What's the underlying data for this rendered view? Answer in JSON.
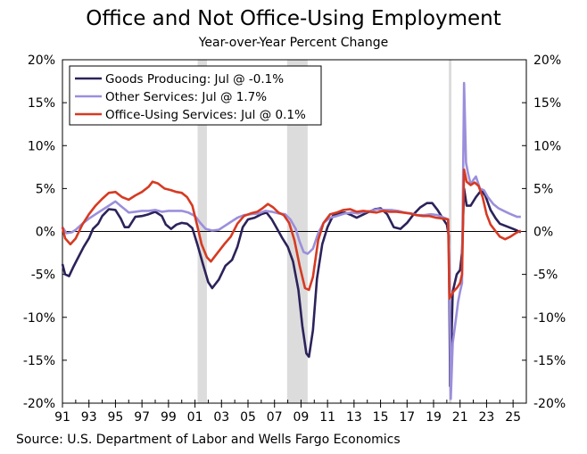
{
  "chart_data": {
    "type": "line",
    "title": "Office and Not Office-Using Employment",
    "subtitle": "Year-over-Year Percent Change",
    "source": "Source: U.S. Department of Labor and Wells Fargo Economics",
    "xlabel": "",
    "ylabel": "",
    "xlim": [
      1991.0,
      2026.0
    ],
    "ylim": [
      -20,
      20
    ],
    "yticks": [
      20,
      15,
      10,
      5,
      0,
      -5,
      -10,
      -15,
      -20
    ],
    "ytick_labels": [
      "20%",
      "15%",
      "10%",
      "5%",
      "0%",
      "-5%",
      "-10%",
      "-15%",
      "-20%"
    ],
    "xtick_labels": [
      "91",
      "93",
      "95",
      "97",
      "99",
      "01",
      "03",
      "05",
      "07",
      "09",
      "11",
      "13",
      "15",
      "17",
      "19",
      "21",
      "23",
      "25"
    ],
    "xticks": [
      1991,
      1993,
      1995,
      1997,
      1999,
      2001,
      2003,
      2005,
      2007,
      2009,
      2011,
      2013,
      2015,
      2017,
      2019,
      2021,
      2023,
      2025
    ],
    "recessions": [
      [
        2001.2,
        2001.9
      ],
      [
        2007.95,
        2009.5
      ],
      [
        2020.15,
        2020.35
      ]
    ],
    "legend_position": "top-left",
    "series": [
      {
        "name": "Goods Producing: Jul @ -0.1%",
        "color": "#2b235a",
        "points": [
          [
            1991.0,
            -3.8
          ],
          [
            1991.2,
            -5.0
          ],
          [
            1991.5,
            -5.2
          ],
          [
            1991.8,
            -4.2
          ],
          [
            1992.2,
            -3.0
          ],
          [
            1992.6,
            -1.8
          ],
          [
            1993.0,
            -0.8
          ],
          [
            1993.3,
            0.3
          ],
          [
            1993.7,
            0.9
          ],
          [
            1994.0,
            1.8
          ],
          [
            1994.5,
            2.6
          ],
          [
            1995.0,
            2.5
          ],
          [
            1995.4,
            1.5
          ],
          [
            1995.7,
            0.5
          ],
          [
            1996.0,
            0.5
          ],
          [
            1996.5,
            1.7
          ],
          [
            1997.0,
            1.8
          ],
          [
            1997.5,
            2.0
          ],
          [
            1998.0,
            2.3
          ],
          [
            1998.5,
            1.8
          ],
          [
            1998.8,
            0.8
          ],
          [
            1999.2,
            0.3
          ],
          [
            1999.6,
            0.8
          ],
          [
            2000.0,
            1.0
          ],
          [
            2000.4,
            0.9
          ],
          [
            2000.8,
            0.4
          ],
          [
            2001.2,
            -1.6
          ],
          [
            2001.6,
            -3.8
          ],
          [
            2002.0,
            -5.9
          ],
          [
            2002.3,
            -6.6
          ],
          [
            2002.8,
            -5.6
          ],
          [
            2003.3,
            -4.0
          ],
          [
            2003.8,
            -3.3
          ],
          [
            2004.2,
            -1.8
          ],
          [
            2004.6,
            0.5
          ],
          [
            2005.0,
            1.4
          ],
          [
            2005.5,
            1.6
          ],
          [
            2006.0,
            2.0
          ],
          [
            2006.4,
            2.2
          ],
          [
            2006.8,
            1.4
          ],
          [
            2007.2,
            0.3
          ],
          [
            2007.6,
            -0.8
          ],
          [
            2008.0,
            -1.8
          ],
          [
            2008.4,
            -3.5
          ],
          [
            2008.8,
            -6.8
          ],
          [
            2009.1,
            -11.0
          ],
          [
            2009.4,
            -14.2
          ],
          [
            2009.6,
            -14.6
          ],
          [
            2009.9,
            -11.5
          ],
          [
            2010.2,
            -5.5
          ],
          [
            2010.6,
            -1.5
          ],
          [
            2011.0,
            0.5
          ],
          [
            2011.4,
            1.8
          ],
          [
            2011.8,
            2.1
          ],
          [
            2012.3,
            2.2
          ],
          [
            2012.8,
            1.9
          ],
          [
            2013.2,
            1.6
          ],
          [
            2013.6,
            1.9
          ],
          [
            2014.0,
            2.2
          ],
          [
            2014.6,
            2.6
          ],
          [
            2015.0,
            2.7
          ],
          [
            2015.5,
            2.0
          ],
          [
            2016.0,
            0.5
          ],
          [
            2016.5,
            0.3
          ],
          [
            2017.0,
            1.0
          ],
          [
            2017.5,
            2.0
          ],
          [
            2018.0,
            2.8
          ],
          [
            2018.5,
            3.3
          ],
          [
            2018.9,
            3.3
          ],
          [
            2019.3,
            2.5
          ],
          [
            2019.7,
            1.5
          ],
          [
            2020.0,
            0.8
          ],
          [
            2020.15,
            -0.5
          ],
          [
            2020.25,
            -18.0
          ],
          [
            2020.45,
            -7.0
          ],
          [
            2020.75,
            -5.0
          ],
          [
            2021.0,
            -4.5
          ],
          [
            2021.15,
            -2.5
          ],
          [
            2021.3,
            5.0
          ],
          [
            2021.5,
            3.0
          ],
          [
            2021.8,
            3.0
          ],
          [
            2022.2,
            4.0
          ],
          [
            2022.6,
            4.8
          ],
          [
            2022.9,
            4.2
          ],
          [
            2023.3,
            2.5
          ],
          [
            2023.7,
            1.5
          ],
          [
            2024.0,
            0.9
          ],
          [
            2024.5,
            0.6
          ],
          [
            2025.0,
            0.3
          ],
          [
            2025.3,
            0.1
          ],
          [
            2025.58,
            -0.1
          ]
        ]
      },
      {
        "name": "Other Services: Jul @ 1.7%",
        "color": "#9b8fdc",
        "points": [
          [
            1991.0,
            0.5
          ],
          [
            1991.3,
            -0.2
          ],
          [
            1991.7,
            -0.1
          ],
          [
            1992.0,
            0.2
          ],
          [
            1992.5,
            0.9
          ],
          [
            1993.0,
            1.5
          ],
          [
            1993.5,
            2.0
          ],
          [
            1994.0,
            2.5
          ],
          [
            1994.5,
            3.0
          ],
          [
            1995.0,
            3.5
          ],
          [
            1995.3,
            3.1
          ],
          [
            1995.7,
            2.6
          ],
          [
            1996.0,
            2.2
          ],
          [
            1996.5,
            2.3
          ],
          [
            1997.0,
            2.4
          ],
          [
            1997.5,
            2.4
          ],
          [
            1998.0,
            2.5
          ],
          [
            1998.5,
            2.3
          ],
          [
            1999.0,
            2.4
          ],
          [
            1999.5,
            2.4
          ],
          [
            2000.0,
            2.4
          ],
          [
            2000.5,
            2.2
          ],
          [
            2001.0,
            1.8
          ],
          [
            2001.4,
            1.0
          ],
          [
            2001.8,
            0.3
          ],
          [
            2002.3,
            0.1
          ],
          [
            2002.8,
            0.2
          ],
          [
            2003.2,
            0.6
          ],
          [
            2003.7,
            1.1
          ],
          [
            2004.2,
            1.6
          ],
          [
            2004.7,
            1.9
          ],
          [
            2005.2,
            2.0
          ],
          [
            2005.8,
            2.1
          ],
          [
            2006.3,
            2.4
          ],
          [
            2006.8,
            2.3
          ],
          [
            2007.3,
            2.1
          ],
          [
            2007.8,
            2.0
          ],
          [
            2008.2,
            1.4
          ],
          [
            2008.6,
            0.3
          ],
          [
            2008.9,
            -1.2
          ],
          [
            2009.2,
            -2.4
          ],
          [
            2009.5,
            -2.6
          ],
          [
            2009.9,
            -2.0
          ],
          [
            2010.3,
            -0.2
          ],
          [
            2010.7,
            1.0
          ],
          [
            2011.2,
            1.6
          ],
          [
            2011.7,
            1.8
          ],
          [
            2012.3,
            2.1
          ],
          [
            2012.8,
            2.2
          ],
          [
            2013.3,
            2.1
          ],
          [
            2013.8,
            2.3
          ],
          [
            2014.3,
            2.4
          ],
          [
            2014.8,
            2.6
          ],
          [
            2015.3,
            2.5
          ],
          [
            2015.8,
            2.5
          ],
          [
            2016.3,
            2.4
          ],
          [
            2016.8,
            2.2
          ],
          [
            2017.3,
            2.1
          ],
          [
            2017.8,
            1.9
          ],
          [
            2018.3,
            1.9
          ],
          [
            2018.8,
            2.0
          ],
          [
            2019.3,
            1.9
          ],
          [
            2019.8,
            1.6
          ],
          [
            2020.1,
            1.4
          ],
          [
            2020.2,
            -4.0
          ],
          [
            2020.3,
            -19.5
          ],
          [
            2020.45,
            -13.0
          ],
          [
            2020.7,
            -10.0
          ],
          [
            2020.85,
            -8.2
          ],
          [
            2021.0,
            -7.0
          ],
          [
            2021.15,
            -6.0
          ],
          [
            2021.3,
            17.3
          ],
          [
            2021.45,
            8.0
          ],
          [
            2021.6,
            6.8
          ],
          [
            2021.8,
            5.5
          ],
          [
            2022.0,
            6.0
          ],
          [
            2022.2,
            6.4
          ],
          [
            2022.5,
            5.0
          ],
          [
            2022.8,
            4.8
          ],
          [
            2023.1,
            4.0
          ],
          [
            2023.5,
            3.2
          ],
          [
            2023.9,
            2.7
          ],
          [
            2024.3,
            2.4
          ],
          [
            2024.7,
            2.1
          ],
          [
            2025.0,
            1.9
          ],
          [
            2025.3,
            1.7
          ],
          [
            2025.58,
            1.7
          ]
        ]
      },
      {
        "name": "Office-Using Services: Jul @ 0.1%",
        "color": "#d63a22",
        "points": [
          [
            1991.0,
            0.5
          ],
          [
            1991.2,
            -0.8
          ],
          [
            1991.6,
            -1.5
          ],
          [
            1992.0,
            -0.8
          ],
          [
            1992.5,
            0.8
          ],
          [
            1993.0,
            2.0
          ],
          [
            1993.5,
            3.0
          ],
          [
            1994.0,
            3.8
          ],
          [
            1994.5,
            4.5
          ],
          [
            1995.0,
            4.6
          ],
          [
            1995.5,
            4.0
          ],
          [
            1996.0,
            3.7
          ],
          [
            1996.5,
            4.2
          ],
          [
            1997.0,
            4.6
          ],
          [
            1997.5,
            5.2
          ],
          [
            1997.8,
            5.8
          ],
          [
            1998.2,
            5.6
          ],
          [
            1998.7,
            5.0
          ],
          [
            1999.2,
            4.8
          ],
          [
            1999.6,
            4.6
          ],
          [
            2000.0,
            4.5
          ],
          [
            2000.4,
            4.0
          ],
          [
            2000.8,
            3.0
          ],
          [
            2001.2,
            0.5
          ],
          [
            2001.5,
            -1.5
          ],
          [
            2001.9,
            -3.0
          ],
          [
            2002.2,
            -3.5
          ],
          [
            2002.7,
            -2.5
          ],
          [
            2003.2,
            -1.5
          ],
          [
            2003.7,
            -0.6
          ],
          [
            2004.2,
            0.9
          ],
          [
            2004.7,
            1.8
          ],
          [
            2005.2,
            2.1
          ],
          [
            2005.7,
            2.3
          ],
          [
            2006.1,
            2.7
          ],
          [
            2006.5,
            3.2
          ],
          [
            2006.9,
            2.8
          ],
          [
            2007.3,
            2.2
          ],
          [
            2007.7,
            1.9
          ],
          [
            2008.1,
            1.0
          ],
          [
            2008.5,
            -1.0
          ],
          [
            2008.9,
            -4.0
          ],
          [
            2009.3,
            -6.6
          ],
          [
            2009.6,
            -6.8
          ],
          [
            2009.9,
            -5.3
          ],
          [
            2010.3,
            -1.0
          ],
          [
            2010.7,
            1.0
          ],
          [
            2011.2,
            2.0
          ],
          [
            2011.7,
            2.2
          ],
          [
            2012.2,
            2.5
          ],
          [
            2012.7,
            2.6
          ],
          [
            2013.2,
            2.3
          ],
          [
            2013.7,
            2.4
          ],
          [
            2014.2,
            2.3
          ],
          [
            2014.7,
            2.2
          ],
          [
            2015.2,
            2.4
          ],
          [
            2015.7,
            2.3
          ],
          [
            2016.2,
            2.3
          ],
          [
            2016.7,
            2.2
          ],
          [
            2017.2,
            2.1
          ],
          [
            2017.7,
            1.9
          ],
          [
            2018.2,
            1.8
          ],
          [
            2018.7,
            1.8
          ],
          [
            2019.2,
            1.6
          ],
          [
            2019.7,
            1.5
          ],
          [
            2020.1,
            1.4
          ],
          [
            2020.2,
            -7.8
          ],
          [
            2020.5,
            -7.0
          ],
          [
            2020.8,
            -6.5
          ],
          [
            2021.0,
            -6.0
          ],
          [
            2021.15,
            -5.0
          ],
          [
            2021.3,
            7.2
          ],
          [
            2021.5,
            5.8
          ],
          [
            2021.8,
            5.4
          ],
          [
            2022.1,
            5.7
          ],
          [
            2022.4,
            5.3
          ],
          [
            2022.7,
            4.0
          ],
          [
            2023.0,
            2.0
          ],
          [
            2023.3,
            0.8
          ],
          [
            2023.7,
            0.0
          ],
          [
            2024.0,
            -0.6
          ],
          [
            2024.4,
            -0.9
          ],
          [
            2024.8,
            -0.6
          ],
          [
            2025.2,
            -0.2
          ],
          [
            2025.58,
            0.1
          ]
        ]
      }
    ]
  }
}
